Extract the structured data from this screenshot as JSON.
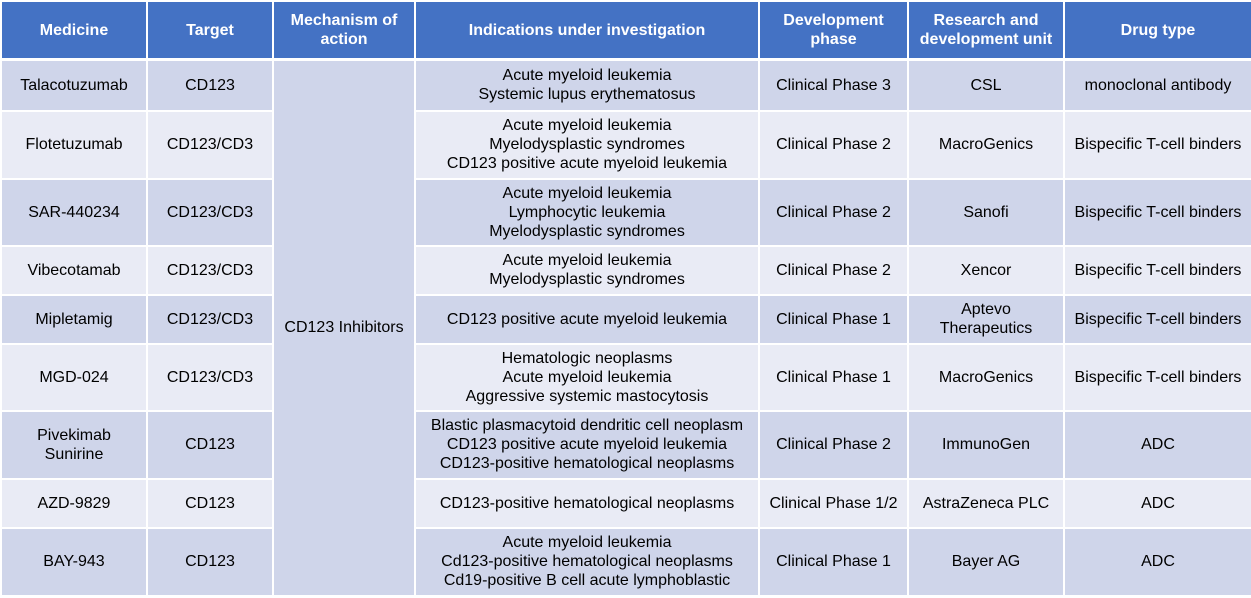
{
  "table": {
    "header": [
      [
        "Medicine"
      ],
      [
        "Target"
      ],
      [
        "Mechanism of",
        "action"
      ],
      [
        "Indications under investigation"
      ],
      [
        "Development",
        "phase"
      ],
      [
        "Research and",
        "development unit"
      ],
      [
        "Drug type"
      ]
    ],
    "mechanism": [
      "CD123 Inhibitors"
    ],
    "rows": [
      [
        [
          "Talacotuzumab"
        ],
        [
          "CD123"
        ],
        [
          "Acute myeloid leukemia",
          "Systemic lupus erythematosus"
        ],
        [
          "Clinical Phase 3"
        ],
        [
          "CSL"
        ],
        [
          "monoclonal antibody"
        ]
      ],
      [
        [
          "Flotetuzumab"
        ],
        [
          "CD123/CD3"
        ],
        [
          "Acute myeloid leukemia",
          "Myelodysplastic syndromes",
          "CD123 positive acute myeloid leukemia"
        ],
        [
          "Clinical Phase 2"
        ],
        [
          "MacroGenics"
        ],
        [
          "Bispecific T-cell binders"
        ]
      ],
      [
        [
          "SAR-440234"
        ],
        [
          "CD123/CD3"
        ],
        [
          "Acute myeloid leukemia",
          "Lymphocytic leukemia",
          "Myelodysplastic syndromes"
        ],
        [
          "Clinical Phase 2"
        ],
        [
          "Sanofi"
        ],
        [
          "Bispecific T-cell binders"
        ]
      ],
      [
        [
          "Vibecotamab"
        ],
        [
          "CD123/CD3"
        ],
        [
          "Acute myeloid leukemia",
          "Myelodysplastic syndromes"
        ],
        [
          "Clinical Phase 2"
        ],
        [
          "Xencor"
        ],
        [
          "Bispecific T-cell binders"
        ]
      ],
      [
        [
          "Mipletamig"
        ],
        [
          "CD123/CD3"
        ],
        [
          "CD123 positive acute myeloid leukemia"
        ],
        [
          "Clinical Phase 1"
        ],
        [
          "Aptevo",
          "Therapeutics"
        ],
        [
          "Bispecific T-cell binders"
        ]
      ],
      [
        [
          "MGD-024"
        ],
        [
          "CD123/CD3"
        ],
        [
          "Hematologic neoplasms",
          "Acute myeloid leukemia",
          "Aggressive systemic mastocytosis"
        ],
        [
          "Clinical Phase 1"
        ],
        [
          "MacroGenics"
        ],
        [
          "Bispecific T-cell binders"
        ]
      ],
      [
        [
          "Pivekimab",
          "Sunirine"
        ],
        [
          "CD123"
        ],
        [
          "Blastic plasmacytoid dendritic cell neoplasm",
          "CD123 positive acute myeloid leukemia",
          "CD123-positive hematological neoplasms"
        ],
        [
          "Clinical Phase 2"
        ],
        [
          "ImmunoGen"
        ],
        [
          "ADC"
        ]
      ],
      [
        [
          "AZD-9829"
        ],
        [
          "CD123"
        ],
        [
          "CD123-positive hematological neoplasms"
        ],
        [
          "Clinical Phase 1/2"
        ],
        [
          "AstraZeneca PLC"
        ],
        [
          "ADC"
        ]
      ],
      [
        [
          "BAY-943"
        ],
        [
          "CD123"
        ],
        [
          "Acute myeloid leukemia",
          "Cd123-positive hematological neoplasms",
          "Cd19-positive B cell acute lymphoblastic"
        ],
        [
          "Clinical Phase 1"
        ],
        [
          "Bayer AG"
        ],
        [
          "ADC"
        ]
      ]
    ]
  }
}
